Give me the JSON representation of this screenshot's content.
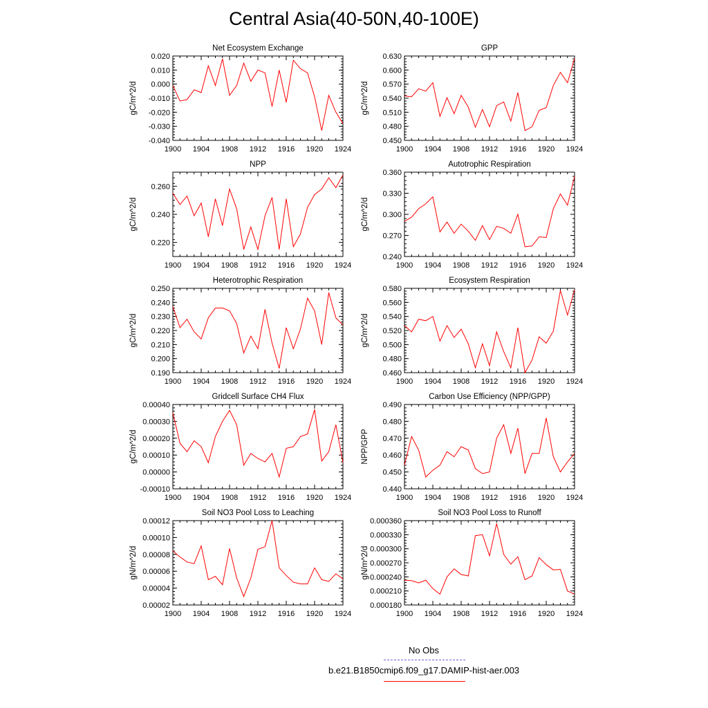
{
  "figure": {
    "title": "Central Asia(40-50N,40-100E)",
    "legend": {
      "obs_label": "No Obs",
      "obs_color": "#6b5bd6",
      "model_label": "b.e21.B1850cmip6.f09_g17.DAMIP-hist-aer.003",
      "model_color": "#ff0000"
    }
  },
  "chart_data": [
    {
      "type": "line",
      "title": "Net Ecosystem Exchange",
      "ylabel": "gC/m^2/d",
      "xlim": [
        1900,
        1924
      ],
      "ylim": [
        -0.04,
        0.02
      ],
      "yticks": [
        "-0.040",
        "-0.030",
        "-0.020",
        "-0.010",
        "0.000",
        "0.010",
        "0.020"
      ],
      "xticks": [
        "1900",
        "1904",
        "1908",
        "1912",
        "1916",
        "1920",
        "1924"
      ],
      "series": [
        {
          "name": "b.e21.B1850cmip6.f09_g17.DAMIP-hist-aer.003",
          "x": [
            1900,
            1901,
            1902,
            1903,
            1904,
            1905,
            1906,
            1907,
            1908,
            1909,
            1910,
            1911,
            1912,
            1913,
            1914,
            1915,
            1916,
            1917,
            1918,
            1919,
            1920,
            1921,
            1922,
            1923,
            1924
          ],
          "y": [
            -0.001,
            -0.012,
            -0.011,
            -0.004,
            -0.006,
            0.013,
            -0.001,
            0.018,
            -0.008,
            -0.001,
            0.015,
            0.002,
            0.01,
            0.008,
            -0.016,
            0.01,
            -0.013,
            0.017,
            0.011,
            0.008,
            -0.009,
            -0.033,
            -0.008,
            -0.02,
            -0.028
          ]
        }
      ]
    },
    {
      "type": "line",
      "title": "GPP",
      "ylabel": "gC/m^2/d",
      "xlim": [
        1900,
        1924
      ],
      "ylim": [
        0.45,
        0.63
      ],
      "yticks": [
        "0.450",
        "0.480",
        "0.510",
        "0.540",
        "0.570",
        "0.600",
        "0.630"
      ],
      "xticks": [
        "1900",
        "1904",
        "1908",
        "1912",
        "1916",
        "1920",
        "1924"
      ],
      "series": [
        {
          "name": "b.e21.B1850cmip6.f09_g17.DAMIP-hist-aer.003",
          "x": [
            1900,
            1901,
            1902,
            1903,
            1904,
            1905,
            1906,
            1907,
            1908,
            1909,
            1910,
            1911,
            1912,
            1913,
            1914,
            1915,
            1916,
            1917,
            1918,
            1919,
            1920,
            1921,
            1922,
            1923,
            1924
          ],
          "y": [
            0.545,
            0.543,
            0.56,
            0.555,
            0.573,
            0.501,
            0.541,
            0.507,
            0.546,
            0.521,
            0.478,
            0.516,
            0.479,
            0.524,
            0.532,
            0.491,
            0.552,
            0.471,
            0.479,
            0.514,
            0.52,
            0.567,
            0.595,
            0.573,
            0.625
          ]
        }
      ]
    },
    {
      "type": "line",
      "title": "NPP",
      "ylabel": "gC/m^2/d",
      "xlim": [
        1900,
        1924
      ],
      "ylim": [
        0.21,
        0.27
      ],
      "yticks": [
        "0.220",
        "0.240",
        "0.260"
      ],
      "xticks": [
        "1900",
        "1904",
        "1908",
        "1912",
        "1916",
        "1920",
        "1924"
      ],
      "series": [
        {
          "name": "b.e21.B1850cmip6.f09_g17.DAMIP-hist-aer.003",
          "x": [
            1900,
            1901,
            1902,
            1903,
            1904,
            1905,
            1906,
            1907,
            1908,
            1909,
            1910,
            1911,
            1912,
            1913,
            1914,
            1915,
            1916,
            1917,
            1918,
            1919,
            1920,
            1921,
            1922,
            1923,
            1924
          ],
          "y": [
            0.255,
            0.247,
            0.253,
            0.239,
            0.248,
            0.224,
            0.251,
            0.232,
            0.258,
            0.244,
            0.215,
            0.231,
            0.215,
            0.239,
            0.252,
            0.215,
            0.251,
            0.217,
            0.226,
            0.245,
            0.254,
            0.258,
            0.266,
            0.259,
            0.268
          ]
        }
      ]
    },
    {
      "type": "line",
      "title": "Autotrophic Respiration",
      "ylabel": "gC/m^2/d",
      "xlim": [
        1900,
        1924
      ],
      "ylim": [
        0.24,
        0.36
      ],
      "yticks": [
        "0.240",
        "0.270",
        "0.300",
        "0.330",
        "0.360"
      ],
      "xticks": [
        "1900",
        "1904",
        "1908",
        "1912",
        "1916",
        "1920",
        "1924"
      ],
      "series": [
        {
          "name": "b.e21.B1850cmip6.f09_g17.DAMIP-hist-aer.003",
          "x": [
            1900,
            1901,
            1902,
            1903,
            1904,
            1905,
            1906,
            1907,
            1908,
            1909,
            1910,
            1911,
            1912,
            1913,
            1914,
            1915,
            1916,
            1917,
            1918,
            1919,
            1920,
            1921,
            1922,
            1923,
            1924
          ],
          "y": [
            0.29,
            0.296,
            0.308,
            0.315,
            0.325,
            0.275,
            0.289,
            0.273,
            0.286,
            0.276,
            0.263,
            0.284,
            0.264,
            0.283,
            0.28,
            0.273,
            0.3,
            0.254,
            0.255,
            0.268,
            0.267,
            0.308,
            0.329,
            0.313,
            0.354
          ]
        }
      ]
    },
    {
      "type": "line",
      "title": "Heterotrophic Respiration",
      "ylabel": "gC/m^2/d",
      "xlim": [
        1900,
        1924
      ],
      "ylim": [
        0.19,
        0.25
      ],
      "yticks": [
        "0.190",
        "0.200",
        "0.210",
        "0.220",
        "0.230",
        "0.240",
        "0.250"
      ],
      "xticks": [
        "1900",
        "1904",
        "1908",
        "1912",
        "1916",
        "1920",
        "1924"
      ],
      "series": [
        {
          "name": "b.e21.B1850cmip6.f09_g17.DAMIP-hist-aer.003",
          "x": [
            1900,
            1901,
            1902,
            1903,
            1904,
            1905,
            1906,
            1907,
            1908,
            1909,
            1910,
            1911,
            1912,
            1913,
            1914,
            1915,
            1916,
            1917,
            1918,
            1919,
            1920,
            1921,
            1922,
            1923,
            1924
          ],
          "y": [
            0.237,
            0.222,
            0.228,
            0.219,
            0.214,
            0.229,
            0.236,
            0.236,
            0.234,
            0.225,
            0.204,
            0.216,
            0.207,
            0.235,
            0.211,
            0.193,
            0.222,
            0.207,
            0.221,
            0.243,
            0.234,
            0.21,
            0.247,
            0.229,
            0.224
          ]
        }
      ]
    },
    {
      "type": "line",
      "title": "Ecosystem Respiration",
      "ylabel": "gC/m^2/d",
      "xlim": [
        1900,
        1924
      ],
      "ylim": [
        0.46,
        0.58
      ],
      "yticks": [
        "0.460",
        "0.480",
        "0.500",
        "0.520",
        "0.540",
        "0.560",
        "0.580"
      ],
      "xticks": [
        "1900",
        "1904",
        "1908",
        "1912",
        "1916",
        "1920",
        "1924"
      ],
      "series": [
        {
          "name": "b.e21.B1850cmip6.f09_g17.DAMIP-hist-aer.003",
          "x": [
            1900,
            1901,
            1902,
            1903,
            1904,
            1905,
            1906,
            1907,
            1908,
            1909,
            1910,
            1911,
            1912,
            1913,
            1914,
            1915,
            1916,
            1917,
            1918,
            1919,
            1920,
            1921,
            1922,
            1923,
            1924
          ],
          "y": [
            0.527,
            0.518,
            0.536,
            0.534,
            0.54,
            0.505,
            0.527,
            0.51,
            0.522,
            0.501,
            0.467,
            0.501,
            0.47,
            0.518,
            0.49,
            0.467,
            0.524,
            0.46,
            0.478,
            0.511,
            0.502,
            0.519,
            0.577,
            0.542,
            0.578
          ]
        }
      ]
    },
    {
      "type": "line",
      "title": "Gridcell Surface CH4 Flux",
      "ylabel": "gC/m^2/d",
      "xlim": [
        1900,
        1924
      ],
      "ylim": [
        -0.0001,
        0.0004
      ],
      "yticks": [
        "-0.00010",
        "0.00000",
        "0.00010",
        "0.00020",
        "0.00030",
        "0.00040"
      ],
      "xticks": [
        "1900",
        "1904",
        "1908",
        "1912",
        "1916",
        "1920",
        "1924"
      ],
      "series": [
        {
          "name": "b.e21.B1850cmip6.f09_g17.DAMIP-hist-aer.003",
          "x": [
            1900,
            1901,
            1902,
            1903,
            1904,
            1905,
            1906,
            1907,
            1908,
            1909,
            1910,
            1911,
            1912,
            1913,
            1914,
            1915,
            1916,
            1917,
            1918,
            1919,
            1920,
            1921,
            1922,
            1923,
            1924
          ],
          "y": [
            0.00035,
            0.00017,
            0.00012,
            0.000185,
            0.00015,
            5.5e-05,
            0.00021,
            0.0003,
            0.000365,
            0.00028,
            4e-05,
            0.00011,
            8e-05,
            6e-05,
            0.00011,
            -3e-05,
            0.00014,
            0.00015,
            0.00021,
            0.000225,
            0.00037,
            6.5e-05,
            0.00012,
            0.00028,
            5.5e-05
          ]
        }
      ]
    },
    {
      "type": "line",
      "title": "Carbon Use Efficiency (NPP/GPP)",
      "ylabel": "NPP/GPP",
      "xlim": [
        1900,
        1924
      ],
      "ylim": [
        0.44,
        0.49
      ],
      "yticks": [
        "0.440",
        "0.450",
        "0.460",
        "0.470",
        "0.480",
        "0.490"
      ],
      "xticks": [
        "1900",
        "1904",
        "1908",
        "1912",
        "1916",
        "1920",
        "1924"
      ],
      "series": [
        {
          "name": "b.e21.B1850cmip6.f09_g17.DAMIP-hist-aer.003",
          "x": [
            1900,
            1901,
            1902,
            1903,
            1904,
            1905,
            1906,
            1907,
            1908,
            1909,
            1910,
            1911,
            1912,
            1913,
            1914,
            1915,
            1916,
            1917,
            1918,
            1919,
            1920,
            1921,
            1922,
            1923,
            1924
          ],
          "y": [
            0.454,
            0.471,
            0.463,
            0.447,
            0.451,
            0.454,
            0.462,
            0.459,
            0.465,
            0.463,
            0.452,
            0.449,
            0.45,
            0.47,
            0.478,
            0.461,
            0.476,
            0.449,
            0.461,
            0.461,
            0.482,
            0.459,
            0.45,
            0.456,
            0.461
          ]
        }
      ]
    },
    {
      "type": "line",
      "title": "Soil NO3 Pool Loss to Leaching",
      "ylabel": "gN/m^2/d",
      "xlim": [
        1900,
        1924
      ],
      "ylim": [
        2e-05,
        0.00012
      ],
      "yticks": [
        "0.00002",
        "0.00004",
        "0.00006",
        "0.00008",
        "0.00010",
        "0.00012"
      ],
      "xticks": [
        "1900",
        "1904",
        "1908",
        "1912",
        "1916",
        "1920",
        "1924"
      ],
      "series": [
        {
          "name": "b.e21.B1850cmip6.f09_g17.DAMIP-hist-aer.003",
          "x": [
            1900,
            1901,
            1902,
            1903,
            1904,
            1905,
            1906,
            1907,
            1908,
            1909,
            1910,
            1911,
            1912,
            1913,
            1914,
            1915,
            1916,
            1917,
            1918,
            1919,
            1920,
            1921,
            1922,
            1923,
            1924
          ],
          "y": [
            8.4e-05,
            7.7e-05,
            7.1e-05,
            6.9e-05,
            9e-05,
            5e-05,
            5.4e-05,
            4.4e-05,
            8.7e-05,
            5.2e-05,
            3e-05,
            5.2e-05,
            8.6e-05,
            8.9e-05,
            0.00012,
            6.4e-05,
            5.5e-05,
            4.7e-05,
            4.5e-05,
            4.5e-05,
            6.4e-05,
            5e-05,
            4.8e-05,
            5.7e-05,
            5.1e-05
          ]
        }
      ]
    },
    {
      "type": "line",
      "title": "Soil NO3 Pool Loss to Runoff",
      "ylabel": "gN/m^2/d",
      "xlim": [
        1900,
        1924
      ],
      "ylim": [
        0.00018,
        0.00036
      ],
      "yticks": [
        "0.000180",
        "0.000210",
        "0.000240",
        "0.000270",
        "0.000300",
        "0.000330",
        "0.000360"
      ],
      "xticks": [
        "1900",
        "1904",
        "1908",
        "1912",
        "1916",
        "1920",
        "1924"
      ],
      "series": [
        {
          "name": "b.e21.B1850cmip6.f09_g17.DAMIP-hist-aer.003",
          "x": [
            1900,
            1901,
            1902,
            1903,
            1904,
            1905,
            1906,
            1907,
            1908,
            1909,
            1910,
            1911,
            1912,
            1913,
            1914,
            1915,
            1916,
            1917,
            1918,
            1919,
            1920,
            1921,
            1922,
            1923,
            1924
          ],
          "y": [
            0.000233,
            0.000232,
            0.000227,
            0.000233,
            0.000215,
            0.000203,
            0.00024,
            0.000257,
            0.000245,
            0.000242,
            0.000328,
            0.00033,
            0.000285,
            0.000354,
            0.000288,
            0.000267,
            0.000283,
            0.000234,
            0.000242,
            0.000281,
            0.000266,
            0.000255,
            0.000256,
            0.00021,
            0.000203
          ]
        }
      ]
    }
  ]
}
